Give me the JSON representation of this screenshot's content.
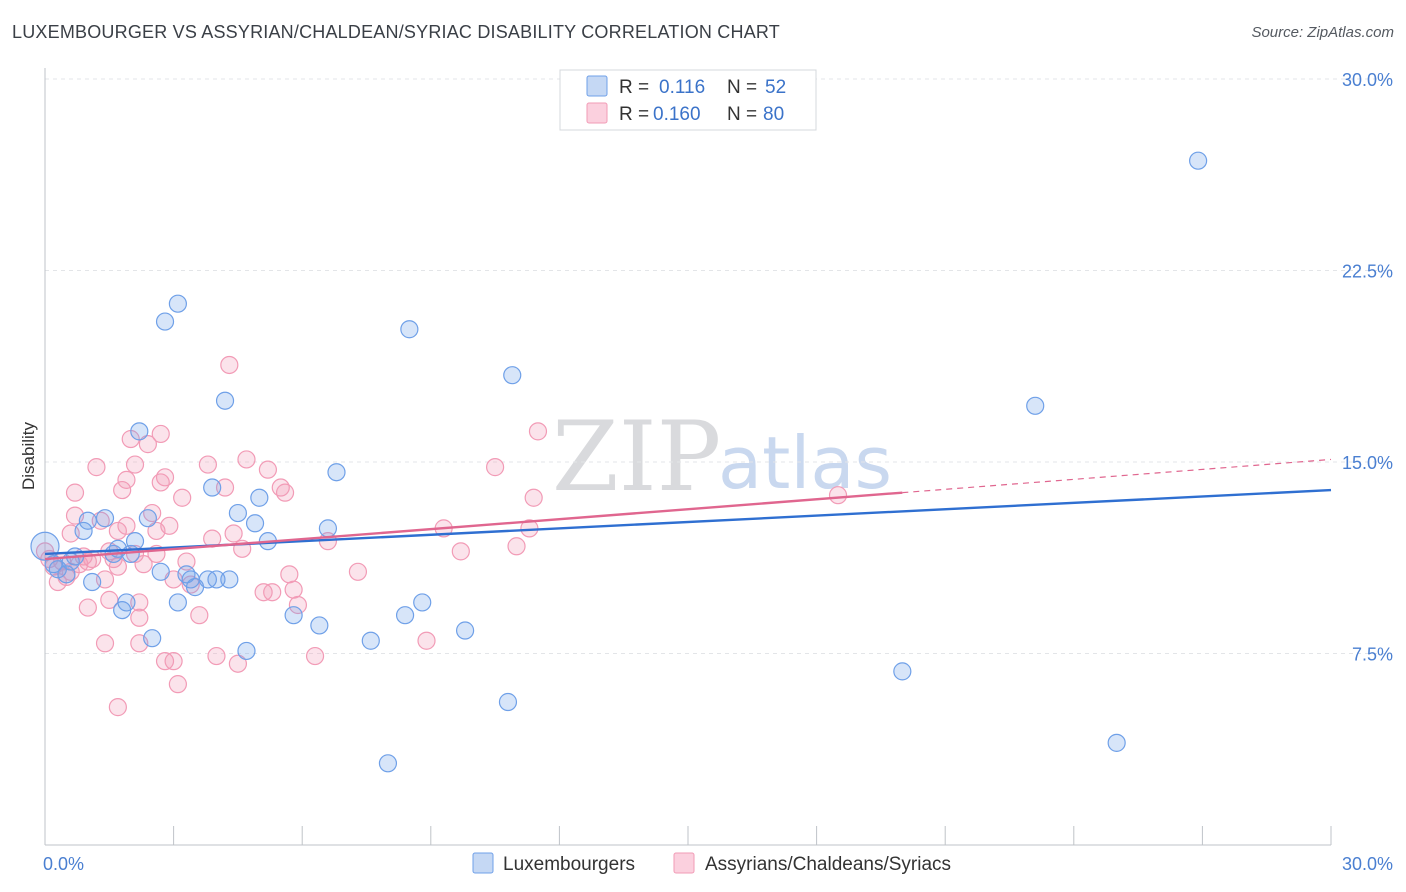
{
  "header": {
    "title": "LUXEMBOURGER VS ASSYRIAN/CHALDEAN/SYRIAC DISABILITY CORRELATION CHART",
    "source": "Source: ZipAtlas.com"
  },
  "watermark": {
    "zip": "ZIP",
    "atlas": "atlas"
  },
  "colors": {
    "blue": "#6fa0e8",
    "blue_line": "#2f6fd1",
    "pink": "#f29bb6",
    "pink_line": "#e0668f",
    "axis_text": "#4a7fd1"
  },
  "legend": {
    "r_label": "R =",
    "n_label": "N =",
    "series": [
      {
        "r": "0.116",
        "n": "52"
      },
      {
        "r": "0.160",
        "n": "80"
      }
    ]
  },
  "chart_data": {
    "type": "scatter",
    "title": "LUXEMBOURGER VS ASSYRIAN/CHALDEAN/SYRIAC DISABILITY CORRELATION CHART",
    "xlabel": "",
    "ylabel": "Disability",
    "xlim": [
      0,
      30
    ],
    "ylim": [
      0,
      30
    ],
    "x_tick_labels": [
      "0.0%",
      "30.0%"
    ],
    "y_ticks": [
      7.5,
      15.0,
      22.5,
      30.0
    ],
    "y_tick_labels": [
      "7.5%",
      "15.0%",
      "22.5%",
      "30.0%"
    ],
    "grid": true,
    "series": [
      {
        "name": "Luxembourgers",
        "color": "#6fa0e8",
        "trend": {
          "x0": 0,
          "y0": 11.4,
          "x1": 30,
          "y1": 13.9
        },
        "points": [
          [
            0.0,
            11.7
          ],
          [
            0.2,
            11.0
          ],
          [
            0.3,
            10.8
          ],
          [
            0.5,
            10.6
          ],
          [
            0.6,
            11.1
          ],
          [
            0.7,
            11.3
          ],
          [
            0.9,
            12.3
          ],
          [
            1.0,
            12.7
          ],
          [
            1.1,
            10.3
          ],
          [
            1.4,
            12.8
          ],
          [
            1.6,
            11.4
          ],
          [
            1.7,
            11.6
          ],
          [
            1.8,
            9.2
          ],
          [
            1.9,
            9.5
          ],
          [
            2.0,
            11.4
          ],
          [
            2.1,
            11.9
          ],
          [
            2.2,
            16.2
          ],
          [
            2.4,
            12.8
          ],
          [
            2.5,
            8.1
          ],
          [
            2.7,
            10.7
          ],
          [
            2.8,
            20.5
          ],
          [
            3.1,
            21.2
          ],
          [
            3.1,
            9.5
          ],
          [
            3.3,
            10.6
          ],
          [
            3.4,
            10.4
          ],
          [
            3.5,
            10.1
          ],
          [
            3.8,
            10.4
          ],
          [
            3.9,
            14.0
          ],
          [
            4.0,
            10.4
          ],
          [
            4.2,
            17.4
          ],
          [
            4.3,
            10.4
          ],
          [
            4.5,
            13.0
          ],
          [
            4.7,
            7.6
          ],
          [
            4.9,
            12.6
          ],
          [
            5.0,
            13.6
          ],
          [
            5.2,
            11.9
          ],
          [
            5.8,
            9.0
          ],
          [
            6.4,
            8.6
          ],
          [
            6.6,
            12.4
          ],
          [
            6.8,
            14.6
          ],
          [
            7.6,
            8.0
          ],
          [
            8.0,
            3.2
          ],
          [
            8.4,
            9.0
          ],
          [
            8.5,
            20.2
          ],
          [
            8.8,
            9.5
          ],
          [
            9.8,
            8.4
          ],
          [
            10.8,
            5.6
          ],
          [
            10.9,
            18.4
          ],
          [
            20.0,
            6.8
          ],
          [
            23.1,
            17.2
          ],
          [
            25.0,
            4.0
          ],
          [
            26.9,
            26.8
          ]
        ]
      },
      {
        "name": "Assyrians/Chaldeans/Syriacs",
        "color": "#f29bb6",
        "trend": {
          "x0": 0,
          "y0": 11.2,
          "x1": 20,
          "y1": 13.8,
          "dash_x1": 30,
          "dash_y1": 15.1
        },
        "points": [
          [
            0.0,
            11.5
          ],
          [
            0.1,
            11.2
          ],
          [
            0.2,
            10.9
          ],
          [
            0.3,
            10.3
          ],
          [
            0.4,
            11.1
          ],
          [
            0.5,
            10.5
          ],
          [
            0.6,
            10.7
          ],
          [
            0.6,
            12.2
          ],
          [
            0.7,
            12.9
          ],
          [
            0.7,
            13.8
          ],
          [
            0.8,
            11.0
          ],
          [
            0.9,
            11.3
          ],
          [
            1.0,
            11.1
          ],
          [
            1.0,
            9.3
          ],
          [
            1.1,
            11.2
          ],
          [
            1.2,
            14.8
          ],
          [
            1.3,
            12.7
          ],
          [
            1.4,
            10.4
          ],
          [
            1.4,
            7.9
          ],
          [
            1.5,
            9.6
          ],
          [
            1.5,
            11.5
          ],
          [
            1.6,
            11.2
          ],
          [
            1.7,
            12.3
          ],
          [
            1.7,
            10.9
          ],
          [
            1.7,
            5.4
          ],
          [
            1.8,
            13.9
          ],
          [
            1.9,
            14.3
          ],
          [
            1.9,
            12.5
          ],
          [
            2.0,
            15.9
          ],
          [
            2.1,
            14.9
          ],
          [
            2.1,
            11.4
          ],
          [
            2.2,
            9.5
          ],
          [
            2.2,
            8.9
          ],
          [
            2.2,
            7.9
          ],
          [
            2.3,
            11.0
          ],
          [
            2.4,
            15.7
          ],
          [
            2.5,
            13.0
          ],
          [
            2.6,
            12.3
          ],
          [
            2.6,
            11.4
          ],
          [
            2.7,
            16.1
          ],
          [
            2.7,
            14.2
          ],
          [
            2.8,
            7.2
          ],
          [
            2.8,
            14.4
          ],
          [
            2.9,
            12.5
          ],
          [
            3.0,
            10.4
          ],
          [
            3.0,
            7.2
          ],
          [
            3.1,
            6.3
          ],
          [
            3.2,
            13.6
          ],
          [
            3.3,
            11.1
          ],
          [
            3.4,
            10.2
          ],
          [
            3.6,
            9.0
          ],
          [
            3.8,
            14.9
          ],
          [
            3.9,
            12.0
          ],
          [
            4.0,
            7.4
          ],
          [
            4.2,
            14.0
          ],
          [
            4.3,
            18.8
          ],
          [
            4.4,
            12.2
          ],
          [
            4.5,
            7.1
          ],
          [
            4.6,
            11.6
          ],
          [
            4.7,
            15.1
          ],
          [
            5.1,
            9.9
          ],
          [
            5.2,
            14.7
          ],
          [
            5.3,
            9.9
          ],
          [
            5.5,
            14.0
          ],
          [
            5.6,
            13.8
          ],
          [
            5.7,
            10.6
          ],
          [
            5.8,
            10.0
          ],
          [
            5.9,
            9.4
          ],
          [
            6.3,
            7.4
          ],
          [
            6.6,
            11.9
          ],
          [
            7.3,
            10.7
          ],
          [
            8.9,
            8.0
          ],
          [
            9.3,
            12.4
          ],
          [
            9.7,
            11.5
          ],
          [
            10.5,
            14.8
          ],
          [
            11.0,
            11.7
          ],
          [
            11.3,
            12.4
          ],
          [
            11.4,
            13.6
          ],
          [
            11.5,
            16.2
          ],
          [
            18.5,
            13.7
          ]
        ]
      }
    ]
  }
}
